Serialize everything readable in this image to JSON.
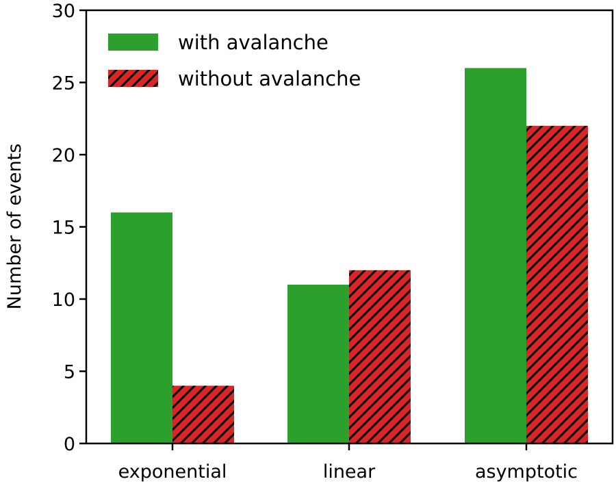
{
  "chart_data": {
    "type": "bar",
    "title": "",
    "xlabel": "",
    "ylabel": "Number of events",
    "categories": [
      "exponential",
      "linear",
      "asymptotic"
    ],
    "series": [
      {
        "name": "with avalanche",
        "values": [
          16,
          11,
          26
        ],
        "color": "#2ca02c",
        "hatch": "none"
      },
      {
        "name": "without avalanche",
        "values": [
          4,
          12,
          22
        ],
        "color": "#d62728",
        "hatch": "//"
      }
    ],
    "ylim": [
      0,
      30
    ],
    "yticks": [
      0,
      5,
      10,
      15,
      20,
      25,
      30
    ],
    "grid": false,
    "legend_position": "upper left"
  }
}
